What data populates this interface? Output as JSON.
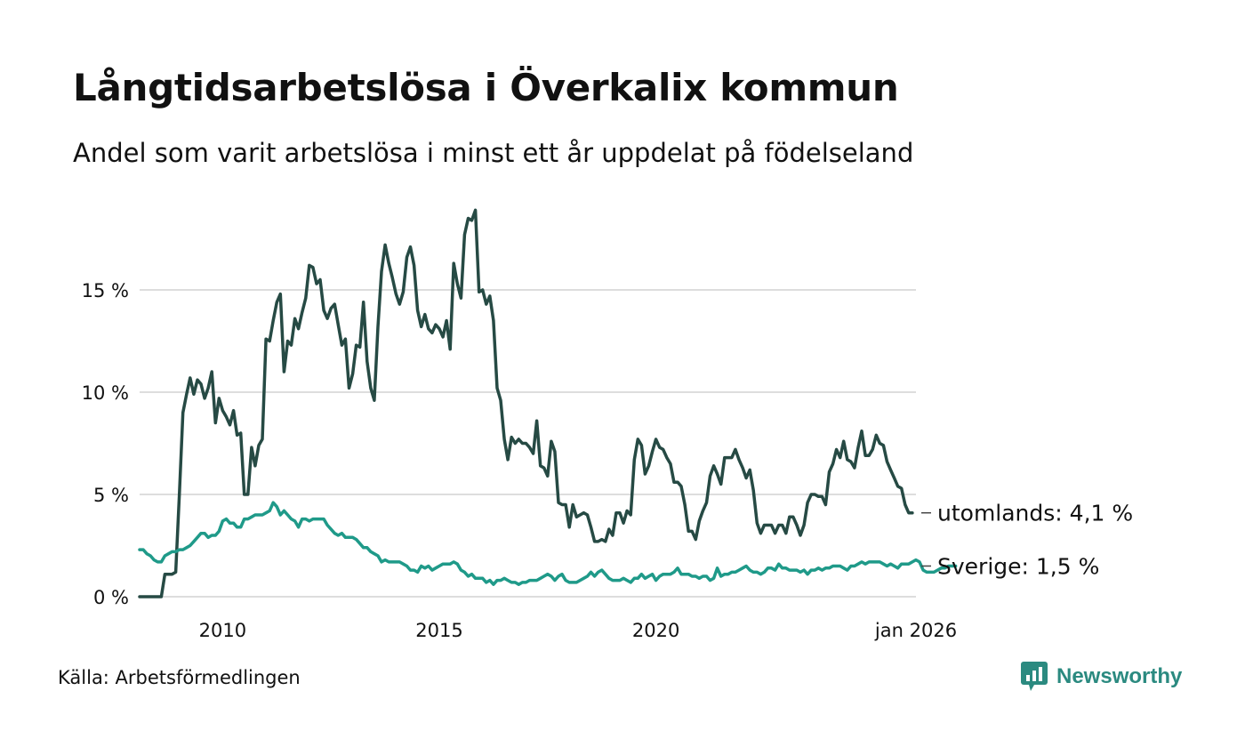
{
  "title": "Långtidsarbetslösa i Överkalix kommun",
  "subtitle": "Andel som varit arbetslösa i minst ett år uppdelat på födelseland",
  "source": "Källa: Arbetsförmedlingen",
  "brand": "Newsworthy",
  "colors": {
    "utomlands": "#264a44",
    "sverige": "#1f9a89",
    "grid": "#dddddd",
    "brand": "#2b8a80"
  },
  "chart_data": {
    "type": "line",
    "x_start": 2008.083,
    "x_step": 0.08333,
    "xlim": [
      2008.0,
      2026.0
    ],
    "ylim": [
      0,
      20
    ],
    "y_ticks": [
      {
        "v": 0,
        "label": "0 %"
      },
      {
        "v": 5,
        "label": "5 %"
      },
      {
        "v": 10,
        "label": "10 %"
      },
      {
        "v": 15,
        "label": "15 %"
      }
    ],
    "x_ticks": [
      {
        "v": 2010,
        "label": "2010"
      },
      {
        "v": 2015,
        "label": "2015"
      },
      {
        "v": 2020,
        "label": "2020"
      },
      {
        "v": 2026,
        "label": "jan 2026"
      }
    ],
    "series": [
      {
        "name": "utomlands",
        "end_label": "utomlands: 4,1 %",
        "values": [
          0,
          0,
          0,
          0,
          0,
          0,
          0,
          1.1,
          1.1,
          1.1,
          1.2,
          5.0,
          9.0,
          9.9,
          10.7,
          9.9,
          10.6,
          10.4,
          9.7,
          10.2,
          11.0,
          8.5,
          9.7,
          9.1,
          8.8,
          8.4,
          9.1,
          7.9,
          8.0,
          5.0,
          5.0,
          7.3,
          6.4,
          7.4,
          7.7,
          12.6,
          12.5,
          13.5,
          14.4,
          14.8,
          11.0,
          12.5,
          12.3,
          13.6,
          13.1,
          13.9,
          14.6,
          16.2,
          16.1,
          15.3,
          15.5,
          14.0,
          13.6,
          14.1,
          14.3,
          13.3,
          12.3,
          12.6,
          10.2,
          10.9,
          12.3,
          12.2,
          14.4,
          11.5,
          10.2,
          9.6,
          13.2,
          15.9,
          17.2,
          16.3,
          15.6,
          14.8,
          14.3,
          14.9,
          16.6,
          17.1,
          16.2,
          14.0,
          13.2,
          13.8,
          13.1,
          12.9,
          13.3,
          13.1,
          12.7,
          13.5,
          12.1,
          16.3,
          15.3,
          14.6,
          17.7,
          18.5,
          18.4,
          18.9,
          14.9,
          15.0,
          14.3,
          14.7,
          13.5,
          10.2,
          9.6,
          7.7,
          6.7,
          7.8,
          7.5,
          7.7,
          7.5,
          7.5,
          7.3,
          7.0,
          8.6,
          6.4,
          6.3,
          5.9,
          7.6,
          7.1,
          4.6,
          4.5,
          4.5,
          3.4,
          4.5,
          3.9,
          4.0,
          4.1,
          4.0,
          3.4,
          2.7,
          2.7,
          2.8,
          2.7,
          3.3,
          3.0,
          4.1,
          4.1,
          3.6,
          4.2,
          4.0,
          6.7,
          7.7,
          7.4,
          6.0,
          6.4,
          7.1,
          7.7,
          7.3,
          7.2,
          6.8,
          6.5,
          5.6,
          5.6,
          5.4,
          4.5,
          3.2,
          3.2,
          2.8,
          3.7,
          4.2,
          4.6,
          5.9,
          6.4,
          6.0,
          5.5,
          6.8,
          6.8,
          6.8,
          7.2,
          6.7,
          6.3,
          5.8,
          6.2,
          5.2,
          3.6,
          3.1,
          3.5,
          3.5,
          3.5,
          3.1,
          3.5,
          3.5,
          3.1,
          3.9,
          3.9,
          3.5,
          3.0,
          3.5,
          4.6,
          5.0,
          5.0,
          4.9,
          4.9,
          4.5,
          6.1,
          6.5,
          7.2,
          6.8,
          7.6,
          6.7,
          6.6,
          6.3,
          7.3,
          8.1,
          6.9,
          6.9,
          7.2,
          7.9,
          7.5,
          7.4,
          6.6,
          6.2,
          5.8,
          5.4,
          5.3,
          4.5,
          4.1,
          4.1
        ]
      },
      {
        "name": "Sverige",
        "end_label": "Sverige: 1,5 %",
        "values": [
          2.3,
          2.3,
          2.1,
          2.0,
          1.8,
          1.7,
          1.7,
          2.0,
          2.1,
          2.2,
          2.2,
          2.3,
          2.3,
          2.4,
          2.5,
          2.7,
          2.9,
          3.1,
          3.1,
          2.9,
          3.0,
          3.0,
          3.2,
          3.7,
          3.8,
          3.6,
          3.6,
          3.4,
          3.4,
          3.8,
          3.8,
          3.9,
          4.0,
          4.0,
          4.0,
          4.1,
          4.2,
          4.6,
          4.4,
          4.0,
          4.2,
          4.0,
          3.8,
          3.7,
          3.4,
          3.8,
          3.8,
          3.7,
          3.8,
          3.8,
          3.8,
          3.8,
          3.5,
          3.3,
          3.1,
          3.0,
          3.1,
          2.9,
          2.9,
          2.9,
          2.8,
          2.6,
          2.4,
          2.4,
          2.2,
          2.1,
          2.0,
          1.7,
          1.8,
          1.7,
          1.7,
          1.7,
          1.7,
          1.6,
          1.5,
          1.3,
          1.3,
          1.2,
          1.5,
          1.4,
          1.5,
          1.3,
          1.4,
          1.5,
          1.6,
          1.6,
          1.6,
          1.7,
          1.6,
          1.3,
          1.2,
          1.0,
          1.1,
          0.9,
          0.9,
          0.9,
          0.7,
          0.8,
          0.6,
          0.8,
          0.8,
          0.9,
          0.8,
          0.7,
          0.7,
          0.6,
          0.7,
          0.7,
          0.8,
          0.8,
          0.8,
          0.9,
          1.0,
          1.1,
          1.0,
          0.8,
          1.0,
          1.1,
          0.8,
          0.7,
          0.7,
          0.7,
          0.8,
          0.9,
          1.0,
          1.2,
          1.0,
          1.2,
          1.3,
          1.1,
          0.9,
          0.8,
          0.8,
          0.8,
          0.9,
          0.8,
          0.7,
          0.9,
          0.9,
          1.1,
          0.9,
          1.0,
          1.1,
          0.8,
          1.0,
          1.1,
          1.1,
          1.1,
          1.2,
          1.4,
          1.1,
          1.1,
          1.1,
          1.0,
          1.0,
          0.9,
          1.0,
          1.0,
          0.8,
          0.9,
          1.4,
          1.0,
          1.1,
          1.1,
          1.2,
          1.2,
          1.3,
          1.4,
          1.5,
          1.3,
          1.2,
          1.2,
          1.1,
          1.2,
          1.4,
          1.4,
          1.3,
          1.6,
          1.4,
          1.4,
          1.3,
          1.3,
          1.3,
          1.2,
          1.3,
          1.1,
          1.3,
          1.3,
          1.4,
          1.3,
          1.4,
          1.4,
          1.5,
          1.5,
          1.5,
          1.4,
          1.3,
          1.5,
          1.5,
          1.6,
          1.7,
          1.6,
          1.7,
          1.7,
          1.7,
          1.7,
          1.6,
          1.5,
          1.6,
          1.5,
          1.4,
          1.6,
          1.6,
          1.6,
          1.7,
          1.8,
          1.7,
          1.3,
          1.2,
          1.2,
          1.2,
          1.3,
          1.4,
          1.4,
          1.5,
          1.5,
          1.5
        ]
      }
    ]
  }
}
